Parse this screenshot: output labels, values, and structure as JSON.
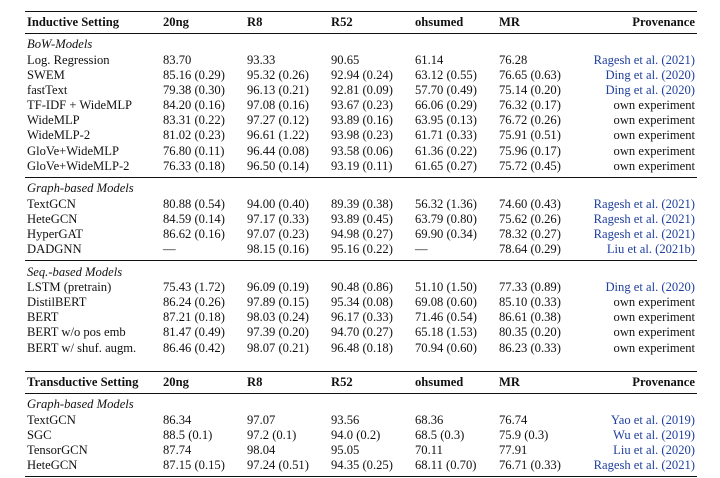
{
  "header": {
    "inductive_label": "Inductive Setting",
    "transductive_label": "Transductive Setting",
    "columns": [
      "20ng",
      "R8",
      "R52",
      "ohsumed",
      "MR"
    ],
    "provenance": "Provenance"
  },
  "groups": [
    {
      "name": "BoW-Models",
      "rows": [
        {
          "model": "Log. Regression",
          "v": [
            "83.70",
            "93.33",
            "90.65",
            "61.14",
            "76.28"
          ],
          "prov": "Ragesh et al. (2021)",
          "cite": true
        },
        {
          "model": "SWEM",
          "v": [
            "85.16 (0.29)",
            "95.32 (0.26)",
            "92.94 (0.24)",
            "63.12 (0.55)",
            "76.65 (0.63)"
          ],
          "prov": "Ding et al. (2020)",
          "cite": true
        },
        {
          "model": "fastText",
          "v": [
            "79.38 (0.30)",
            "96.13 (0.21)",
            "92.81 (0.09)",
            "57.70 (0.49)",
            "75.14 (0.20)"
          ],
          "prov": "Ding et al. (2020)",
          "cite": true
        },
        {
          "model": "TF-IDF + WideMLP",
          "v": [
            "84.20 (0.16)",
            "97.08 (0.16)",
            "93.67 (0.23)",
            "66.06 (0.29)",
            "76.32 (0.17)"
          ],
          "prov": "own experiment",
          "cite": false
        },
        {
          "model": "WideMLP",
          "v": [
            "83.31 (0.22)",
            "97.27 (0.12)",
            "93.89 (0.16)",
            "63.95 (0.13)",
            "76.72 (0.26)"
          ],
          "prov": "own experiment",
          "cite": false
        },
        {
          "model": "WideMLP-2",
          "v": [
            "81.02 (0.23)",
            "96.61 (1.22)",
            "93.98 (0.23)",
            "61.71 (0.33)",
            "75.91 (0.51)"
          ],
          "prov": "own experiment",
          "cite": false
        },
        {
          "model": "GloVe+WideMLP",
          "v": [
            "76.80 (0.11)",
            "96.44 (0.08)",
            "93.58 (0.06)",
            "61.36 (0.22)",
            "75.96 (0.17)"
          ],
          "prov": "own experiment",
          "cite": false
        },
        {
          "model": "GloVe+WideMLP-2",
          "v": [
            "76.33 (0.18)",
            "96.50 (0.14)",
            "93.19 (0.11)",
            "61.65 (0.27)",
            "75.72 (0.45)"
          ],
          "prov": "own experiment",
          "cite": false
        }
      ]
    },
    {
      "name": "Graph-based Models",
      "rows": [
        {
          "model": "TextGCN",
          "v": [
            "80.88 (0.54)",
            "94.00 (0.40)",
            "89.39 (0.38)",
            "56.32 (1.36)",
            "74.60 (0.43)"
          ],
          "prov": "Ragesh et al. (2021)",
          "cite": true
        },
        {
          "model": "HeteGCN",
          "v": [
            "84.59 (0.14)",
            "97.17 (0.33)",
            "93.89 (0.45)",
            "63.79 (0.80)",
            "75.62 (0.26)"
          ],
          "prov": "Ragesh et al. (2021)",
          "cite": true
        },
        {
          "model": "HyperGAT",
          "v": [
            "86.62 (0.16)",
            "97.07 (0.23)",
            "94.98 (0.27)",
            "69.90 (0.34)",
            "78.32 (0.27)"
          ],
          "prov": "Ragesh et al. (2021)",
          "cite": true
        },
        {
          "model": "DADGNN",
          "v": [
            "—",
            "98.15 (0.16)",
            "95.16 (0.22)",
            "—",
            "78.64 (0.29)"
          ],
          "prov": "Liu et al. (2021b)",
          "cite": true
        }
      ]
    },
    {
      "name": "Seq.-based Models",
      "rows": [
        {
          "model": "LSTM (pretrain)",
          "v": [
            "75.43 (1.72)",
            "96.09 (0.19)",
            "90.48 (0.86)",
            "51.10 (1.50)",
            "77.33 (0.89)"
          ],
          "prov": "Ding et al. (2020)",
          "cite": true
        },
        {
          "model": "DistilBERT",
          "v": [
            "86.24 (0.26)",
            "97.89 (0.15)",
            "95.34 (0.08)",
            "69.08 (0.60)",
            "85.10 (0.33)"
          ],
          "prov": "own experiment",
          "cite": false
        },
        {
          "model": "BERT",
          "v": [
            "87.21 (0.18)",
            "98.03 (0.24)",
            "96.17 (0.33)",
            "71.46 (0.54)",
            "86.61 (0.38)"
          ],
          "prov": "own experiment",
          "cite": false
        },
        {
          "model": "BERT w/o pos emb",
          "v": [
            "81.47 (0.49)",
            "97.39 (0.20)",
            "94.70 (0.27)",
            "65.18 (1.53)",
            "80.35 (0.20)"
          ],
          "prov": "own experiment",
          "cite": false
        },
        {
          "model": "BERT w/ shuf. augm.",
          "v": [
            "86.46 (0.42)",
            "98.07 (0.21)",
            "96.48 (0.18)",
            "70.94 (0.60)",
            "86.23 (0.33)"
          ],
          "prov": "own experiment",
          "cite": false
        }
      ]
    }
  ],
  "transductive": {
    "name": "Graph-based Models",
    "rows": [
      {
        "model": "TextGCN",
        "v": [
          "86.34",
          "97.07",
          "93.56",
          "68.36",
          "76.74"
        ],
        "prov": "Yao et al. (2019)",
        "cite": true
      },
      {
        "model": "SGC",
        "v": [
          "88.5 (0.1)",
          "97.2 (0.1)",
          "94.0 (0.2)",
          "68.5 (0.3)",
          "75.9 (0.3)"
        ],
        "prov": "Wu et al. (2019)",
        "cite": true
      },
      {
        "model": "TensorGCN",
        "v": [
          "87.74",
          "98.04",
          "95.05",
          "70.11",
          "77.91"
        ],
        "prov": "Liu et al. (2020)",
        "cite": true
      },
      {
        "model": "HeteGCN",
        "v": [
          "87.15 (0.15)",
          "97.24 (0.51)",
          "94.35 (0.25)",
          "68.11 (0.70)",
          "76.71 (0.33)"
        ],
        "prov": "Ragesh et al. (2021)",
        "cite": true
      }
    ]
  },
  "colors": {
    "citation": "#1f3f9e",
    "text": "#111111"
  }
}
